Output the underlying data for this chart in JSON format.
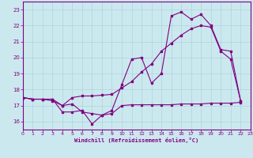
{
  "background_color": "#cce8ef",
  "line_color": "#800080",
  "xlabel": "Windchill (Refroidissement éolien,°C)",
  "xlim": [
    0,
    23
  ],
  "ylim": [
    15.5,
    23.5
  ],
  "yticks": [
    16,
    17,
    18,
    19,
    20,
    21,
    22,
    23
  ],
  "xticks": [
    0,
    1,
    2,
    3,
    4,
    5,
    6,
    7,
    8,
    9,
    10,
    11,
    12,
    13,
    14,
    15,
    16,
    17,
    18,
    19,
    20,
    21,
    22,
    23
  ],
  "line1_x": [
    0,
    1,
    2,
    3,
    4,
    5,
    6,
    7,
    8,
    9,
    10,
    11,
    12,
    13,
    14,
    15,
    16,
    17,
    18,
    19,
    20,
    21,
    22
  ],
  "line1_y": [
    17.5,
    17.4,
    17.4,
    17.4,
    16.6,
    16.6,
    16.7,
    15.85,
    16.4,
    16.5,
    17.0,
    17.05,
    17.05,
    17.05,
    17.05,
    17.05,
    17.1,
    17.1,
    17.1,
    17.15,
    17.15,
    17.15,
    17.2
  ],
  "line2_x": [
    0,
    1,
    2,
    3,
    4,
    5,
    6,
    7,
    8,
    9,
    10,
    11,
    12,
    13,
    14,
    15,
    16,
    17,
    18,
    19,
    20,
    21,
    22
  ],
  "line2_y": [
    17.5,
    17.4,
    17.4,
    17.3,
    17.0,
    17.1,
    16.6,
    16.5,
    16.4,
    16.7,
    18.3,
    19.9,
    20.0,
    18.4,
    19.0,
    22.6,
    22.85,
    22.4,
    22.7,
    22.0,
    20.5,
    20.4,
    17.3
  ],
  "line3_x": [
    0,
    1,
    2,
    3,
    4,
    5,
    6,
    7,
    8,
    9,
    10,
    11,
    12,
    13,
    14,
    15,
    16,
    17,
    18,
    19,
    20,
    21,
    22
  ],
  "line3_y": [
    17.5,
    17.4,
    17.4,
    17.4,
    17.0,
    17.5,
    17.6,
    17.6,
    17.65,
    17.7,
    18.1,
    18.5,
    19.1,
    19.6,
    20.4,
    20.9,
    21.4,
    21.8,
    22.0,
    21.9,
    20.4,
    19.9,
    17.3
  ]
}
